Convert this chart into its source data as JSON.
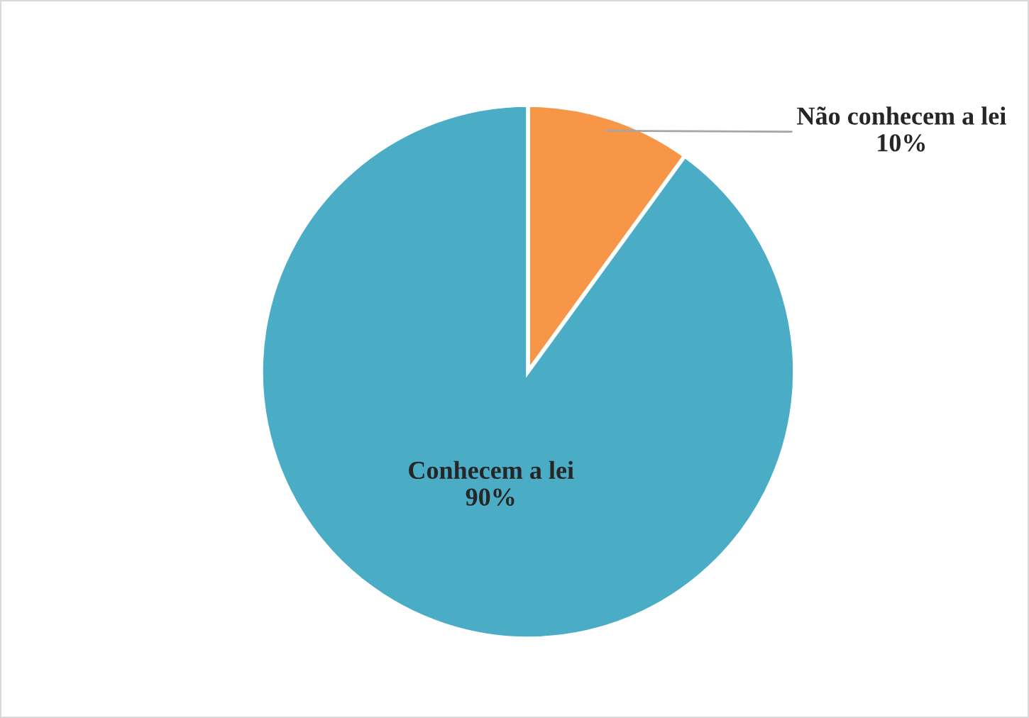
{
  "chart_data": {
    "type": "pie",
    "categories": [
      "Não conhecem a lei",
      "Conhecem a lei"
    ],
    "values": [
      10,
      90
    ],
    "colors": [
      "#f79646",
      "#4bacc6"
    ],
    "value_labels": [
      "10%",
      "90%"
    ]
  }
}
